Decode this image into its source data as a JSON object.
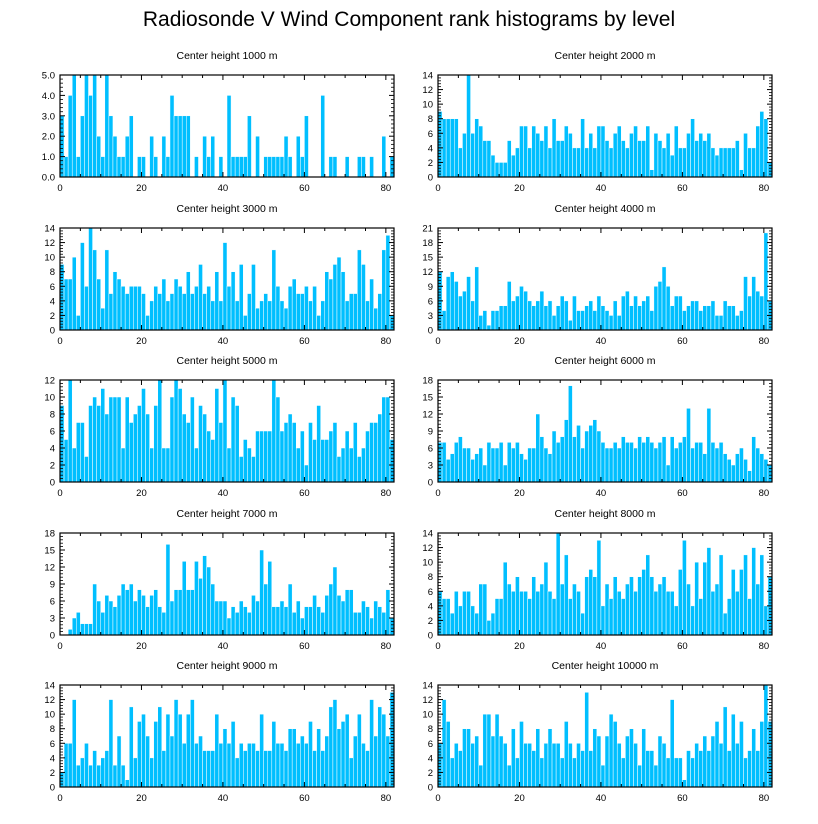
{
  "title": "Radiosonde V Wind Component rank histograms by level",
  "colors": {
    "bar": "#00bfff",
    "bar_edge": "#ffffff",
    "axis": "#000000"
  },
  "chart_data": [
    {
      "type": "bar",
      "title": "Center height 1000 m",
      "xlim": [
        0,
        82
      ],
      "ylim": [
        0,
        5
      ],
      "xticks": [
        0,
        20,
        40,
        60,
        80
      ],
      "yticks": [
        "0.0",
        "1.0",
        "2.0",
        "3.0",
        "4.0",
        "5.0"
      ],
      "values": [
        3,
        1,
        4,
        5,
        1,
        3,
        5,
        4,
        5,
        2,
        1,
        5,
        3,
        2,
        1,
        1,
        2,
        3,
        0,
        1,
        1,
        0,
        2,
        1,
        0,
        2,
        1,
        4,
        3,
        3,
        3,
        3,
        0,
        1,
        0,
        2,
        1,
        2,
        0,
        1,
        0,
        4,
        1,
        1,
        1,
        1,
        3,
        0,
        2,
        0,
        1,
        1,
        1,
        1,
        1,
        2,
        1,
        0,
        2,
        1,
        3,
        0,
        0,
        0,
        4,
        0,
        1,
        1,
        0,
        0,
        1,
        0,
        0,
        1,
        1,
        0,
        1,
        0,
        0,
        2,
        0,
        1
      ]
    },
    {
      "type": "bar",
      "title": "Center height 2000 m",
      "xlim": [
        0,
        82
      ],
      "ylim": [
        0,
        14
      ],
      "xticks": [
        0,
        20,
        40,
        60,
        80
      ],
      "yticks": [
        "0",
        "2",
        "4",
        "6",
        "8",
        "10",
        "12",
        "14"
      ],
      "values": [
        9,
        8,
        8,
        8,
        8,
        4,
        6,
        14,
        6,
        8,
        7,
        5,
        5,
        3,
        2,
        2,
        2,
        5,
        3,
        4,
        7,
        7,
        4,
        7,
        6,
        5,
        7,
        4,
        8,
        5,
        5,
        7,
        6,
        4,
        4,
        8,
        4,
        6,
        4,
        7,
        7,
        5,
        4,
        6,
        7,
        5,
        4,
        6,
        7,
        5,
        5,
        7,
        1,
        6,
        5,
        4,
        6,
        3,
        7,
        4,
        4,
        6,
        8,
        5,
        6,
        5,
        6,
        4,
        3,
        4,
        4,
        4,
        4,
        5,
        1,
        6,
        4,
        4,
        7,
        9,
        8,
        2
      ]
    },
    {
      "type": "bar",
      "title": "Center height 3000 m",
      "xlim": [
        0,
        82
      ],
      "ylim": [
        0,
        14
      ],
      "xticks": [
        0,
        20,
        40,
        60,
        80
      ],
      "yticks": [
        "0",
        "2",
        "4",
        "6",
        "8",
        "10",
        "12",
        "14"
      ],
      "values": [
        9,
        7,
        7,
        10,
        2,
        12,
        6,
        14,
        11,
        7,
        3,
        11,
        5,
        8,
        7,
        6,
        5,
        6,
        6,
        6,
        5,
        2,
        4,
        6,
        5,
        7,
        4,
        5,
        7,
        6,
        5,
        8,
        5,
        6,
        9,
        5,
        6,
        4,
        8,
        4,
        12,
        6,
        8,
        4,
        9,
        2,
        5,
        9,
        3,
        4,
        5,
        4,
        11,
        6,
        4,
        3,
        6,
        7,
        5,
        5,
        6,
        4,
        6,
        2,
        4,
        8,
        7,
        9,
        10,
        8,
        4,
        5,
        5,
        11,
        9,
        4,
        7,
        3,
        5,
        11,
        13,
        2
      ]
    },
    {
      "type": "bar",
      "title": "Center height 4000 m",
      "xlim": [
        0,
        82
      ],
      "ylim": [
        0,
        21
      ],
      "xticks": [
        0,
        20,
        40,
        60,
        80
      ],
      "yticks": [
        "0",
        "3",
        "6",
        "9",
        "12",
        "15",
        "18",
        "21"
      ],
      "values": [
        12,
        4,
        11,
        12,
        10,
        7,
        8,
        11,
        6,
        13,
        3,
        4,
        1,
        4,
        4,
        5,
        5,
        10,
        6,
        7,
        9,
        8,
        6,
        5,
        6,
        8,
        5,
        6,
        3,
        5,
        7,
        6,
        2,
        7,
        4,
        4,
        5,
        6,
        4,
        7,
        5,
        4,
        3,
        6,
        3,
        7,
        8,
        5,
        7,
        5,
        6,
        7,
        4,
        9,
        10,
        13,
        9,
        5,
        7,
        7,
        4,
        5,
        6,
        6,
        4,
        5,
        5,
        6,
        3,
        3,
        6,
        5,
        5,
        3,
        4,
        11,
        7,
        11,
        8,
        7,
        20,
        6
      ]
    },
    {
      "type": "bar",
      "title": "Center height 5000 m",
      "xlim": [
        0,
        82
      ],
      "ylim": [
        0,
        12
      ],
      "xticks": [
        0,
        20,
        40,
        60,
        80
      ],
      "yticks": [
        "0",
        "2",
        "4",
        "6",
        "8",
        "10",
        "12"
      ],
      "values": [
        9,
        5,
        12,
        4,
        7,
        7,
        3,
        9,
        10,
        9,
        11,
        8,
        10,
        10,
        10,
        4,
        10,
        7,
        8,
        9,
        11,
        8,
        4,
        9,
        12,
        4,
        4,
        10,
        12,
        11,
        8,
        7,
        10,
        4,
        9,
        8,
        6,
        5,
        11,
        7,
        12,
        4,
        10,
        9,
        3,
        5,
        4,
        3,
        6,
        6,
        6,
        6,
        12,
        10,
        6,
        7,
        8,
        7,
        4,
        6,
        2,
        7,
        5,
        9,
        5,
        5,
        6,
        7,
        3,
        4,
        6,
        4,
        7,
        3,
        4,
        6,
        7,
        7,
        8,
        10,
        10,
        5
      ]
    },
    {
      "type": "bar",
      "title": "Center height 6000 m",
      "xlim": [
        0,
        82
      ],
      "ylim": [
        0,
        18
      ],
      "xticks": [
        0,
        20,
        40,
        60,
        80
      ],
      "yticks": [
        "0",
        "3",
        "6",
        "9",
        "12",
        "15",
        "18"
      ],
      "values": [
        7,
        7,
        4,
        5,
        7,
        8,
        6,
        6,
        4,
        5,
        6,
        3,
        7,
        6,
        6,
        7,
        3,
        7,
        6,
        7,
        5,
        4,
        6,
        6,
        12,
        8,
        6,
        5,
        9,
        7,
        8,
        11,
        17,
        8,
        10,
        6,
        9,
        10,
        11,
        9,
        7,
        6,
        6,
        7,
        6,
        8,
        7,
        7,
        6,
        8,
        7,
        8,
        7,
        6,
        7,
        8,
        3,
        8,
        6,
        7,
        8,
        13,
        6,
        7,
        7,
        5,
        13,
        7,
        6,
        7,
        5,
        4,
        3,
        5,
        6,
        4,
        2,
        8,
        6,
        5,
        4,
        3
      ]
    },
    {
      "type": "bar",
      "title": "Center height 7000 m",
      "xlim": [
        0,
        82
      ],
      "ylim": [
        0,
        18
      ],
      "xticks": [
        0,
        20,
        40,
        60,
        80
      ],
      "yticks": [
        "0",
        "3",
        "6",
        "9",
        "12",
        "15",
        "18"
      ],
      "values": [
        0,
        0,
        1,
        3,
        4,
        2,
        2,
        2,
        9,
        6,
        4,
        7,
        6,
        5,
        7,
        9,
        8,
        9,
        6,
        8,
        7,
        5,
        7,
        8,
        5,
        4,
        16,
        6,
        8,
        8,
        13,
        8,
        8,
        13,
        10,
        14,
        12,
        9,
        6,
        6,
        6,
        3,
        5,
        4,
        6,
        5,
        4,
        7,
        6,
        15,
        9,
        13,
        5,
        5,
        6,
        5,
        9,
        4,
        6,
        3,
        5,
        5,
        7,
        5,
        4,
        7,
        9,
        12,
        7,
        6,
        8,
        8,
        4,
        4,
        6,
        5,
        3,
        6,
        5,
        4,
        8,
        3
      ]
    },
    {
      "type": "bar",
      "title": "Center height 8000 m",
      "xlim": [
        0,
        82
      ],
      "ylim": [
        0,
        14
      ],
      "xticks": [
        0,
        20,
        40,
        60,
        80
      ],
      "yticks": [
        "0",
        "2",
        "4",
        "6",
        "8",
        "10",
        "12",
        "14"
      ],
      "values": [
        6,
        5,
        5,
        3,
        6,
        4,
        6,
        6,
        4,
        3,
        7,
        7,
        2,
        3,
        5,
        5,
        10,
        7,
        6,
        8,
        6,
        6,
        5,
        8,
        6,
        7,
        10,
        6,
        5,
        14,
        7,
        11,
        5,
        7,
        6,
        3,
        8,
        9,
        8,
        13,
        4,
        7,
        5,
        8,
        6,
        5,
        7,
        8,
        6,
        8,
        9,
        11,
        8,
        6,
        7,
        8,
        6,
        6,
        4,
        9,
        13,
        7,
        4,
        10,
        5,
        10,
        12,
        6,
        7,
        11,
        3,
        5,
        9,
        6,
        9,
        11,
        5,
        12,
        7,
        11,
        4,
        8
      ]
    },
    {
      "type": "bar",
      "title": "Center height 9000 m",
      "xlim": [
        0,
        82
      ],
      "ylim": [
        0,
        14
      ],
      "xticks": [
        0,
        20,
        40,
        60,
        80
      ],
      "yticks": [
        "0",
        "2",
        "4",
        "6",
        "8",
        "10",
        "12",
        "14"
      ],
      "values": [
        2,
        6,
        6,
        12,
        3,
        4,
        6,
        3,
        5,
        3,
        4,
        5,
        12,
        3,
        7,
        3,
        1,
        11,
        4,
        9,
        10,
        7,
        4,
        9,
        11,
        5,
        10,
        7,
        12,
        10,
        6,
        10,
        12,
        6,
        7,
        5,
        5,
        5,
        10,
        6,
        8,
        6,
        9,
        4,
        6,
        5,
        6,
        6,
        5,
        10,
        5,
        5,
        9,
        6,
        6,
        5,
        8,
        8,
        6,
        7,
        6,
        9,
        5,
        8,
        5,
        7,
        11,
        12,
        8,
        9,
        10,
        4,
        7,
        10,
        6,
        5,
        12,
        7,
        11,
        10,
        7,
        13
      ]
    },
    {
      "type": "bar",
      "title": "Center height 10000 m",
      "xlim": [
        0,
        82
      ],
      "ylim": [
        0,
        14
      ],
      "xticks": [
        0,
        20,
        40,
        60,
        80
      ],
      "yticks": [
        "0",
        "2",
        "4",
        "6",
        "8",
        "10",
        "12",
        "14"
      ],
      "values": [
        6,
        12,
        9,
        4,
        6,
        5,
        8,
        8,
        6,
        7,
        3,
        10,
        10,
        7,
        10,
        7,
        6,
        3,
        8,
        4,
        9,
        6,
        6,
        5,
        8,
        4,
        6,
        8,
        6,
        6,
        4,
        9,
        6,
        4,
        6,
        5,
        13,
        5,
        8,
        7,
        3,
        7,
        10,
        9,
        6,
        4,
        7,
        8,
        6,
        3,
        8,
        5,
        5,
        3,
        7,
        6,
        4,
        12,
        4,
        4,
        1,
        5,
        4,
        6,
        5,
        7,
        5,
        7,
        9,
        6,
        11,
        5,
        10,
        6,
        9,
        4,
        5,
        8,
        5,
        9,
        14,
        9
      ]
    }
  ]
}
